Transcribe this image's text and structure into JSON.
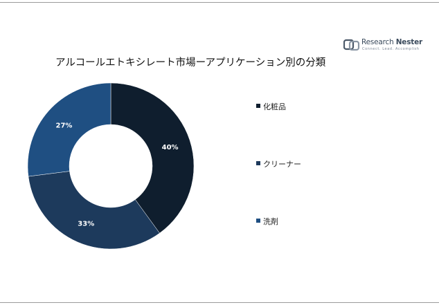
{
  "logo": {
    "name_regular": "Research ",
    "name_bold": "Nester",
    "tagline": "Connect. Lead. Accomplish"
  },
  "chart_data": {
    "type": "pie",
    "style": "donut",
    "title": "アルコールエトキシレート市場ーアプリケーション別の分類",
    "categories": [
      "化粧品",
      "クリーナー",
      "洗剤"
    ],
    "values": [
      40,
      33,
      27
    ],
    "value_labels": [
      "40%",
      "33%",
      "27%"
    ],
    "colors": [
      "#0f1e2e",
      "#1d3a5c",
      "#1f4f82"
    ],
    "label_color": "#ffffff",
    "legend_position": "right"
  }
}
